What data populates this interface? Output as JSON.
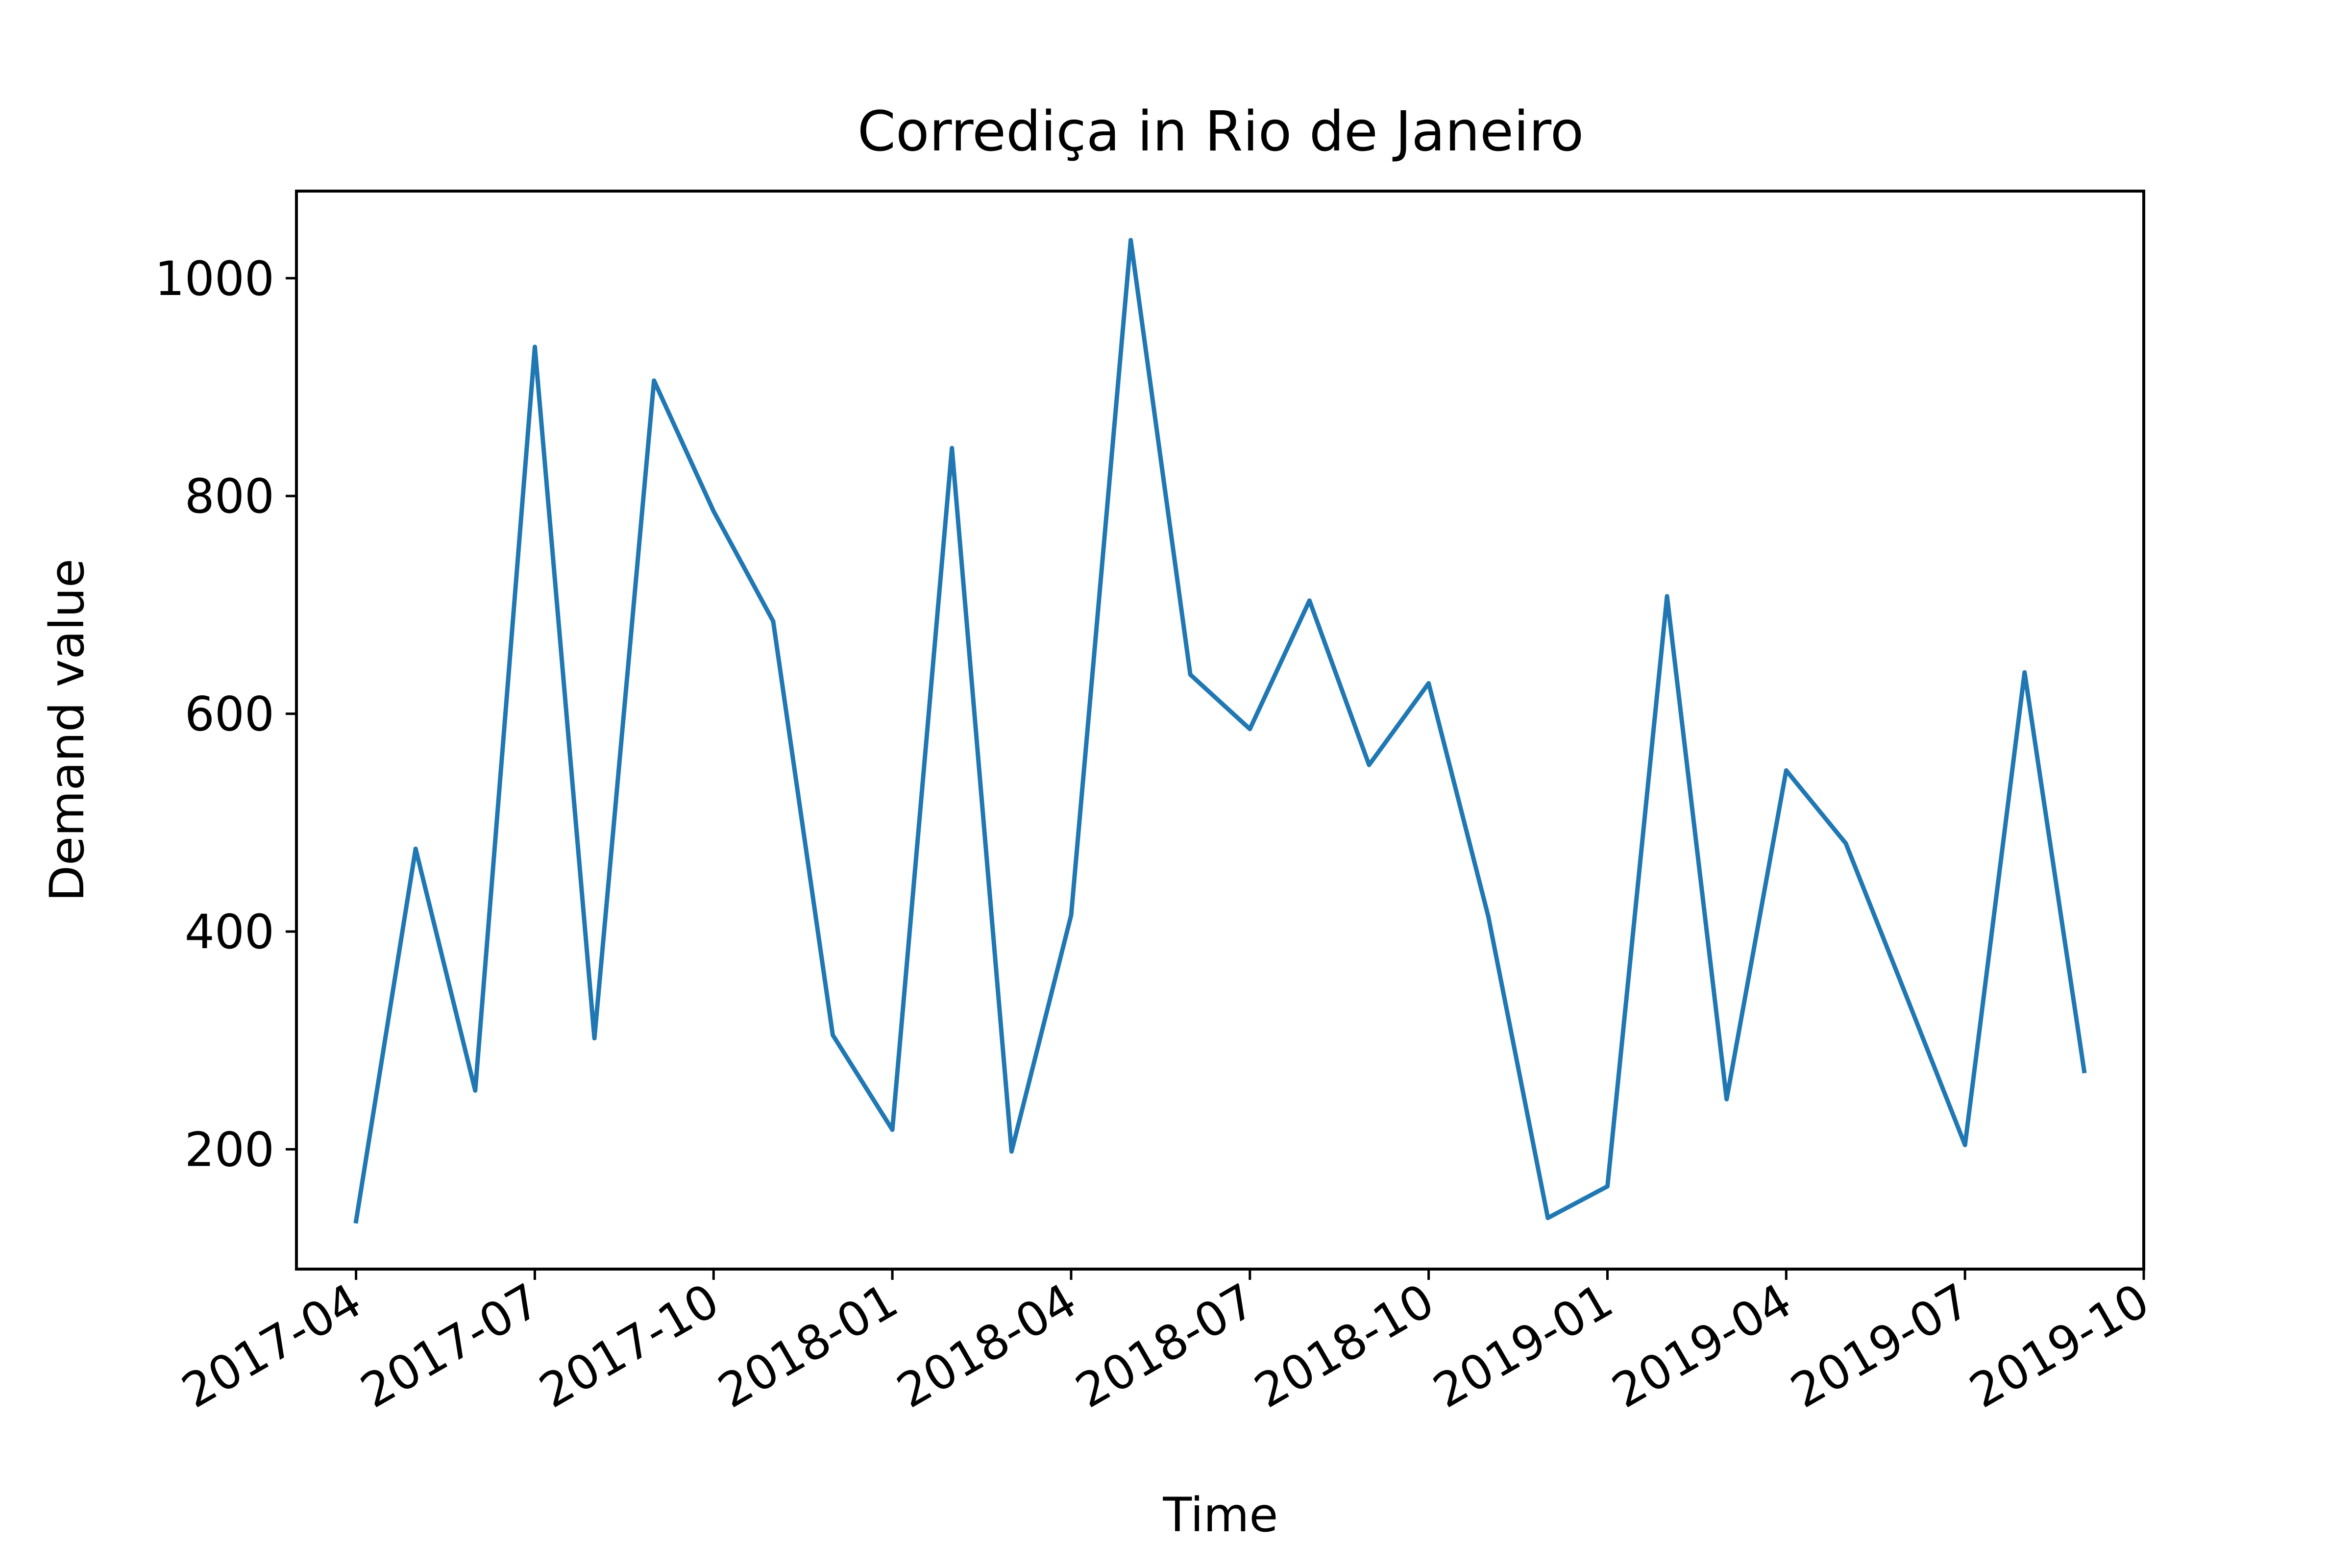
{
  "chart_data": {
    "type": "line",
    "title": "Corrediça in Rio de Janeiro",
    "xlabel": "Time",
    "ylabel": "Demand value",
    "ylim": [
      90,
      1080
    ],
    "xlim": [
      "2017-03-01",
      "2019-10-01"
    ],
    "grid": false,
    "legend": "none",
    "y_ticks": [
      200,
      400,
      600,
      800,
      1000
    ],
    "x_ticks": [
      "2017-04",
      "2017-07",
      "2017-10",
      "2018-01",
      "2018-04",
      "2018-07",
      "2018-10",
      "2019-01",
      "2019-04",
      "2019-07",
      "2019-10"
    ],
    "series": [
      {
        "color": "#1f77b4",
        "x": [
          "2017-04",
          "2017-05",
          "2017-06",
          "2017-07",
          "2017-08",
          "2017-09",
          "2017-10",
          "2017-11",
          "2017-12",
          "2018-01",
          "2018-02",
          "2018-03",
          "2018-04",
          "2018-05",
          "2018-06",
          "2018-07",
          "2018-08",
          "2018-09",
          "2018-10",
          "2018-11",
          "2018-12",
          "2019-01",
          "2019-02",
          "2019-03",
          "2019-04",
          "2019-05",
          "2019-06",
          "2019-07",
          "2019-08",
          "2019-09"
        ],
        "values": [
          134,
          476,
          254,
          937,
          302,
          906,
          786,
          685,
          305,
          218,
          844,
          198,
          415,
          1035,
          636,
          586,
          704,
          553,
          628,
          414,
          137,
          166,
          708,
          246,
          548,
          481,
          343,
          204,
          638,
          272
        ]
      }
    ]
  }
}
